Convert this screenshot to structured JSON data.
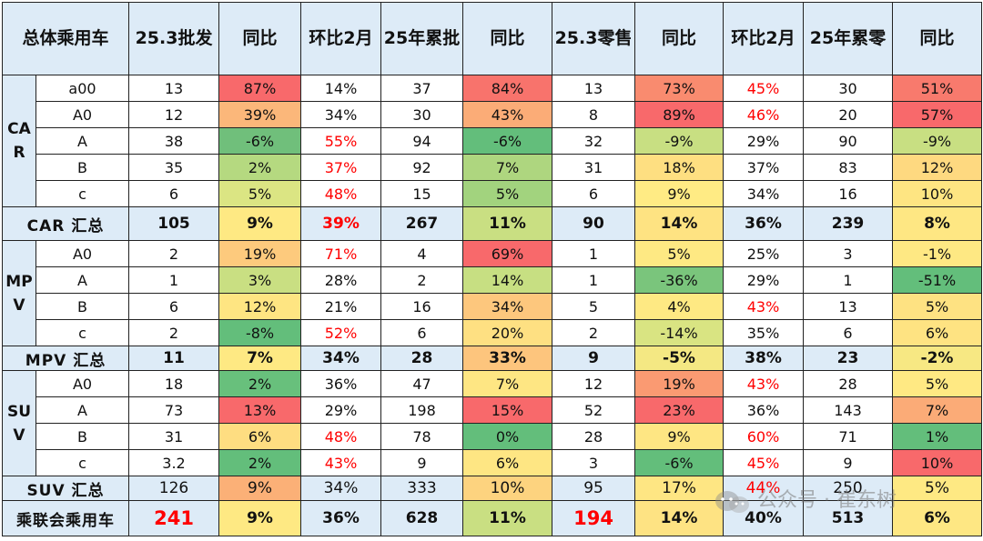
{
  "header": [
    "总体乘用车",
    "25.3批发",
    "同比",
    "环比2月",
    "25年累批",
    "同比",
    "25.3零售",
    "同比",
    "环比2月",
    "25年累零",
    "同比"
  ],
  "groups": [
    {
      "label": "CAR",
      "rows": [
        {
          "seg": "a00",
          "c": [
            {
              "t": "13"
            },
            {
              "t": "87%",
              "bg": "#f8696b"
            },
            {
              "t": "14%"
            },
            {
              "t": "37"
            },
            {
              "t": "84%",
              "bg": "#f8736c"
            },
            {
              "t": "13"
            },
            {
              "t": "73%",
              "bg": "#f98b6f"
            },
            {
              "t": "45%",
              "red": true
            },
            {
              "t": "30"
            },
            {
              "t": "51%",
              "bg": "#f87a6d"
            }
          ]
        },
        {
          "seg": "A0",
          "c": [
            {
              "t": "12"
            },
            {
              "t": "39%",
              "bg": "#fbb77a"
            },
            {
              "t": "34%"
            },
            {
              "t": "30"
            },
            {
              "t": "43%",
              "bg": "#fbac77"
            },
            {
              "t": "8"
            },
            {
              "t": "89%",
              "bg": "#f8696b"
            },
            {
              "t": "46%",
              "red": true
            },
            {
              "t": "20"
            },
            {
              "t": "57%",
              "bg": "#f8696b"
            }
          ]
        },
        {
          "seg": "A",
          "c": [
            {
              "t": "38"
            },
            {
              "t": "-6%",
              "bg": "#70bf7b"
            },
            {
              "t": "55%",
              "red": true
            },
            {
              "t": "94"
            },
            {
              "t": "-6%",
              "bg": "#63be7b"
            },
            {
              "t": "32"
            },
            {
              "t": "-9%",
              "bg": "#c8df82"
            },
            {
              "t": "29%"
            },
            {
              "t": "90"
            },
            {
              "t": "-9%",
              "bg": "#c8df82"
            }
          ]
        },
        {
          "seg": "B",
          "c": [
            {
              "t": "35"
            },
            {
              "t": "2%",
              "bg": "#b5d980"
            },
            {
              "t": "37%",
              "red": true
            },
            {
              "t": "92"
            },
            {
              "t": "7%",
              "bg": "#aed67f"
            },
            {
              "t": "31"
            },
            {
              "t": "18%",
              "bg": "#fedf81"
            },
            {
              "t": "37%"
            },
            {
              "t": "83"
            },
            {
              "t": "12%",
              "bg": "#fed980"
            }
          ]
        },
        {
          "seg": "c",
          "c": [
            {
              "t": "6"
            },
            {
              "t": "5%",
              "bg": "#dbe583"
            },
            {
              "t": "48%",
              "red": true
            },
            {
              "t": "15"
            },
            {
              "t": "5%",
              "bg": "#a2d37e"
            },
            {
              "t": "6"
            },
            {
              "t": "9%",
              "bg": "#ffeb84"
            },
            {
              "t": "34%"
            },
            {
              "t": "16"
            },
            {
              "t": "10%",
              "bg": "#fee582"
            }
          ]
        }
      ],
      "sum": {
        "label": "CAR 汇总",
        "c": [
          {
            "t": "105"
          },
          {
            "t": "9%",
            "bg": "#fee983"
          },
          {
            "t": "39%",
            "red": true
          },
          {
            "t": "267"
          },
          {
            "t": "11%",
            "bg": "#c9df82"
          },
          {
            "t": "90"
          },
          {
            "t": "14%",
            "bg": "#fee382"
          },
          {
            "t": "36%"
          },
          {
            "t": "239"
          },
          {
            "t": "8%",
            "bg": "#fee783"
          }
        ]
      }
    },
    {
      "label": "MPV",
      "rows": [
        {
          "seg": "A0",
          "c": [
            {
              "t": "2"
            },
            {
              "t": "19%",
              "bg": "#fdca7d"
            },
            {
              "t": "71%",
              "red": true
            },
            {
              "t": "4"
            },
            {
              "t": "69%",
              "bg": "#f8696b"
            },
            {
              "t": "1"
            },
            {
              "t": "5%",
              "bg": "#fee983"
            },
            {
              "t": "25%"
            },
            {
              "t": "3"
            },
            {
              "t": "-1%",
              "bg": "#fee883"
            }
          ]
        },
        {
          "seg": "A",
          "c": [
            {
              "t": "1"
            },
            {
              "t": "3%",
              "bg": "#c9df82"
            },
            {
              "t": "28%"
            },
            {
              "t": "2"
            },
            {
              "t": "14%",
              "bg": "#c7df82"
            },
            {
              "t": "1"
            },
            {
              "t": "-36%",
              "bg": "#7ac57c"
            },
            {
              "t": "29%"
            },
            {
              "t": "1"
            },
            {
              "t": "-51%",
              "bg": "#63be7b"
            }
          ]
        },
        {
          "seg": "B",
          "c": [
            {
              "t": "6"
            },
            {
              "t": "12%",
              "bg": "#fee582"
            },
            {
              "t": "21%"
            },
            {
              "t": "16"
            },
            {
              "t": "34%",
              "bg": "#fdc77d"
            },
            {
              "t": "5"
            },
            {
              "t": "4%",
              "bg": "#fee983"
            },
            {
              "t": "43%",
              "red": true
            },
            {
              "t": "13"
            },
            {
              "t": "5%",
              "bg": "#fee282"
            }
          ]
        },
        {
          "seg": "c",
          "c": [
            {
              "t": "2"
            },
            {
              "t": "-8%",
              "bg": "#63be7b"
            },
            {
              "t": "52%",
              "red": true
            },
            {
              "t": "6"
            },
            {
              "t": "20%",
              "bg": "#fee082"
            },
            {
              "t": "2"
            },
            {
              "t": "-14%",
              "bg": "#d9e482"
            },
            {
              "t": "35%"
            },
            {
              "t": "6"
            },
            {
              "t": "6%",
              "bg": "#fee382"
            }
          ]
        }
      ],
      "sum": {
        "label": "MPV 汇总",
        "c": [
          {
            "t": "11"
          },
          {
            "t": "7%",
            "bg": "#fee983"
          },
          {
            "t": "34%"
          },
          {
            "t": "28"
          },
          {
            "t": "33%",
            "bg": "#fdc57d"
          },
          {
            "t": "9"
          },
          {
            "t": "-5%",
            "bg": "#f4e883"
          },
          {
            "t": "38%"
          },
          {
            "t": "23"
          },
          {
            "t": "-2%",
            "bg": "#f7e883"
          }
        ]
      }
    },
    {
      "label": "SUV",
      "rows": [
        {
          "seg": "A0",
          "c": [
            {
              "t": "18"
            },
            {
              "t": "2%",
              "bg": "#68c07c"
            },
            {
              "t": "36%"
            },
            {
              "t": "47"
            },
            {
              "t": "7%",
              "bg": "#fee683"
            },
            {
              "t": "12"
            },
            {
              "t": "19%",
              "bg": "#fa9a72"
            },
            {
              "t": "43%",
              "red": true
            },
            {
              "t": "28"
            },
            {
              "t": "5%",
              "bg": "#ffe983"
            }
          ]
        },
        {
          "seg": "A",
          "c": [
            {
              "t": "73"
            },
            {
              "t": "13%",
              "bg": "#f8696b"
            },
            {
              "t": "29%"
            },
            {
              "t": "198"
            },
            {
              "t": "15%",
              "bg": "#f8696b"
            },
            {
              "t": "52"
            },
            {
              "t": "23%",
              "bg": "#f8696b"
            },
            {
              "t": "36%"
            },
            {
              "t": "143"
            },
            {
              "t": "7%",
              "bg": "#fbab77"
            }
          ]
        },
        {
          "seg": "B",
          "c": [
            {
              "t": "31"
            },
            {
              "t": "6%",
              "bg": "#fedd81"
            },
            {
              "t": "48%",
              "red": true
            },
            {
              "t": "78"
            },
            {
              "t": "0%",
              "bg": "#63be7b"
            },
            {
              "t": "28"
            },
            {
              "t": "9%",
              "bg": "#fee683"
            },
            {
              "t": "60%",
              "red": true
            },
            {
              "t": "71"
            },
            {
              "t": "1%",
              "bg": "#63be7b"
            }
          ]
        },
        {
          "seg": "c",
          "c": [
            {
              "t": "3.2"
            },
            {
              "t": "2%",
              "bg": "#63be7b"
            },
            {
              "t": "43%",
              "red": true
            },
            {
              "t": "9"
            },
            {
              "t": "6%",
              "bg": "#fee683"
            },
            {
              "t": "3"
            },
            {
              "t": "-6%",
              "bg": "#63be7b"
            },
            {
              "t": "45%",
              "red": true
            },
            {
              "t": "9"
            },
            {
              "t": "10%",
              "bg": "#f8696b"
            }
          ]
        }
      ],
      "sum": {
        "label": "SUV 汇总",
        "normal": true,
        "c": [
          {
            "t": "126"
          },
          {
            "t": "9%",
            "bg": "#fbb077"
          },
          {
            "t": "34%"
          },
          {
            "t": "333"
          },
          {
            "t": "10%",
            "bg": "#fdd37f"
          },
          {
            "t": "95"
          },
          {
            "t": "17%",
            "bg": "#fee683"
          },
          {
            "t": "44%",
            "red": true
          },
          {
            "t": "250"
          },
          {
            "t": "5%",
            "bg": "#fee983"
          }
        ]
      }
    }
  ],
  "total": {
    "label": "乘联会乘用车",
    "c": [
      {
        "t": "241",
        "big": true
      },
      {
        "t": "9%",
        "bg": "#fee983"
      },
      {
        "t": "36%"
      },
      {
        "t": "628"
      },
      {
        "t": "11%",
        "bg": "#c9df82"
      },
      {
        "t": "194",
        "big": true
      },
      {
        "t": "14%",
        "bg": "#fee383"
      },
      {
        "t": "40%"
      },
      {
        "t": "513"
      },
      {
        "t": "6%",
        "bg": "#fee783"
      }
    ]
  },
  "watermark": {
    "text": "公众号 · 崔东树",
    "icon": "wechat-icon"
  }
}
